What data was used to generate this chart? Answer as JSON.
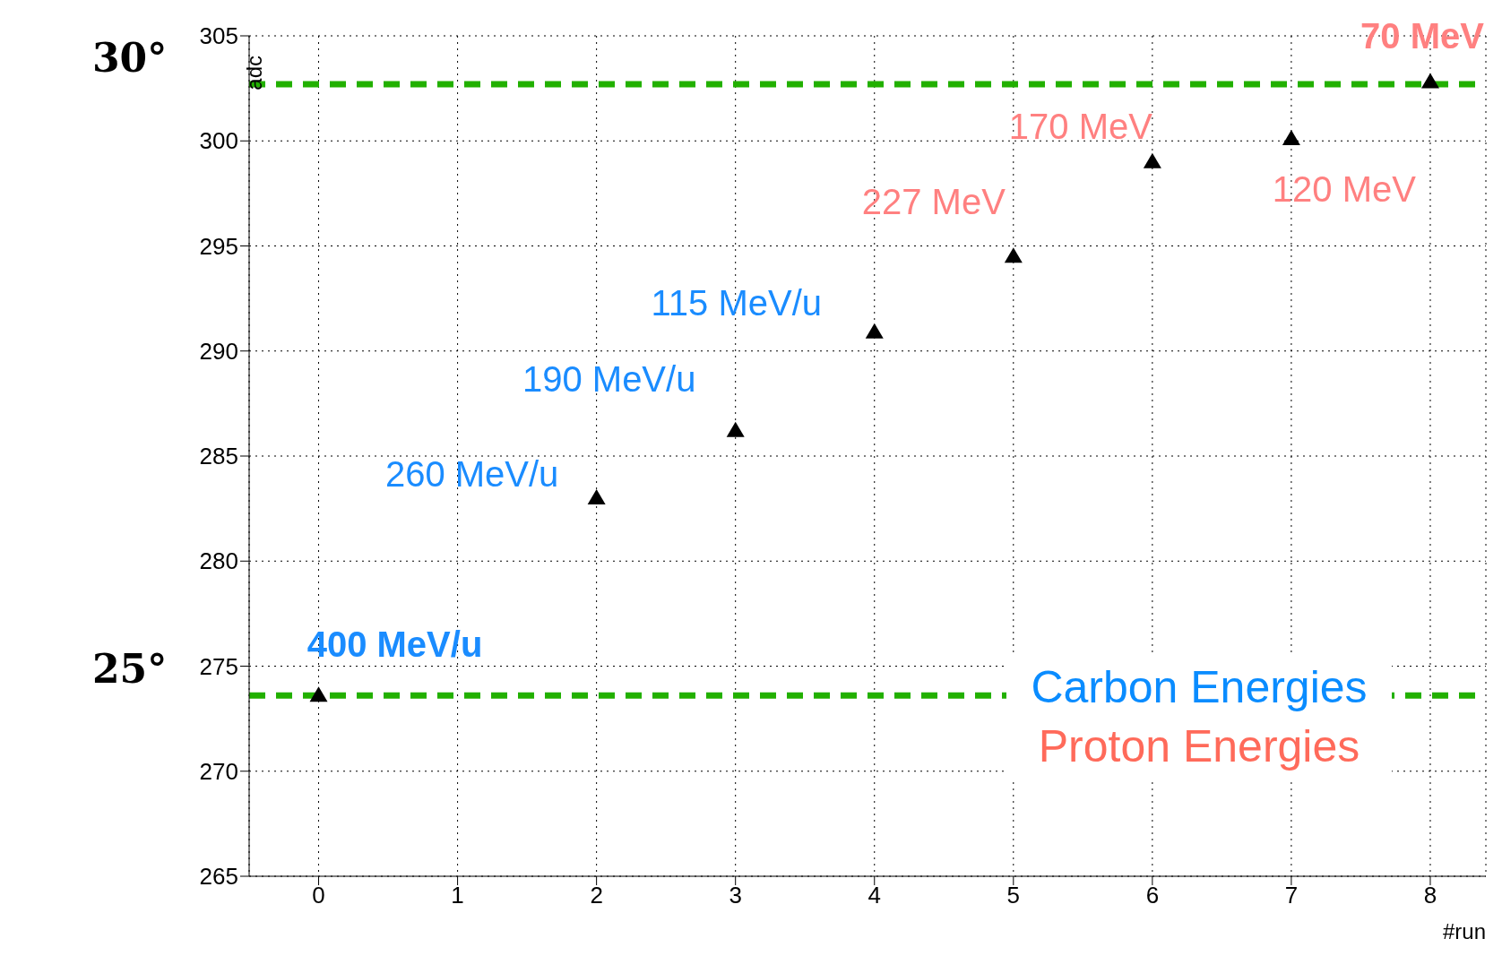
{
  "chart_data": {
    "type": "scatter",
    "xlabel": "#run",
    "ylabel": "adc",
    "x": [
      0,
      2,
      3,
      4,
      5,
      6,
      7,
      8
    ],
    "series": [
      {
        "color": "#000000",
        "values": [
          273.6,
          283,
          286.2,
          290.9,
          294.5,
          299,
          300.1,
          302.8
        ]
      }
    ],
    "marker": "triangle",
    "xlim": [
      -0.5,
      8.4
    ],
    "xticks": [
      0,
      1,
      2,
      3,
      4,
      5,
      6,
      7,
      8
    ],
    "ylim": [
      265,
      305
    ],
    "yticks": [
      265,
      270,
      275,
      280,
      285,
      290,
      295,
      300,
      305
    ],
    "grid": true,
    "ref_lines": [
      {
        "axis": "y",
        "value": 302.7,
        "color": "#22b000",
        "line_style": "dashed"
      },
      {
        "axis": "y",
        "value": 273.6,
        "color": "#22b000",
        "line_style": "dashed"
      }
    ],
    "annotations": [
      "30°",
      "25°",
      {
        "text": "400 MeV/u",
        "x": 0,
        "y": 273.6
      },
      {
        "text": "260 MeV/u",
        "x": 2,
        "y": 283
      },
      {
        "text": "190 MeV/u",
        "x": 3,
        "y": 286.2
      },
      {
        "text": "115 MeV/u",
        "x": 4,
        "y": 290.9
      },
      {
        "text": "227 MeV",
        "x": 5,
        "y": 294.5
      },
      {
        "text": "170 MeV",
        "x": 6,
        "y": 299
      },
      {
        "text": "120 MeV",
        "x": 7,
        "y": 300.1
      },
      {
        "text": "70 MeV",
        "x": 8,
        "y": 302.8
      },
      "Carbon Energies",
      "Proton Energies"
    ]
  }
}
